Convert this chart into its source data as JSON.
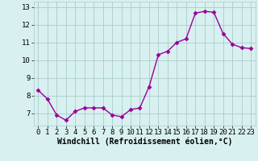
{
  "x": [
    0,
    1,
    2,
    3,
    4,
    5,
    6,
    7,
    8,
    9,
    10,
    11,
    12,
    13,
    14,
    15,
    16,
    17,
    18,
    19,
    20,
    21,
    22,
    23
  ],
  "y": [
    8.3,
    7.8,
    6.9,
    6.6,
    7.1,
    7.3,
    7.3,
    7.3,
    6.9,
    6.8,
    7.2,
    7.3,
    8.5,
    10.3,
    10.5,
    11.0,
    11.2,
    12.65,
    12.75,
    12.7,
    11.5,
    10.9,
    10.7,
    10.65
  ],
  "line_color": "#990099",
  "marker": "D",
  "marker_size": 2.5,
  "bg_color": "#d8f0f0",
  "grid_color": "#aacccc",
  "xlabel": "Windchill (Refroidissement éolien,°C)",
  "xlabel_fontsize": 7,
  "xlim": [
    -0.5,
    23.5
  ],
  "ylim": [
    6.3,
    13.3
  ],
  "yticks": [
    7,
    8,
    9,
    10,
    11,
    12,
    13
  ],
  "xticks": [
    0,
    1,
    2,
    3,
    4,
    5,
    6,
    7,
    8,
    9,
    10,
    11,
    12,
    13,
    14,
    15,
    16,
    17,
    18,
    19,
    20,
    21,
    22,
    23
  ],
  "tick_fontsize": 6.5,
  "linewidth": 1.0
}
